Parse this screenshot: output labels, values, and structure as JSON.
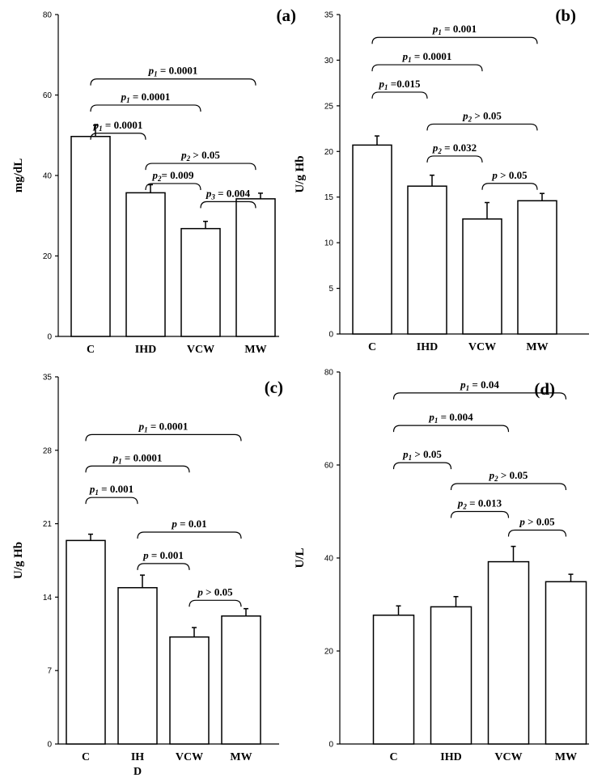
{
  "chart_data": [
    {
      "type": "bar",
      "panel_label": "(a)",
      "ylabel": "mg/dL",
      "ylim": [
        0,
        80
      ],
      "yticks": [
        "0",
        "20",
        "40",
        "60",
        "80"
      ],
      "categories": [
        "C",
        "IHD",
        "VCW",
        "MW"
      ],
      "values": [
        49.7,
        35.7,
        26.8,
        34.2
      ],
      "errors": [
        2.8,
        2.0,
        1.8,
        1.4
      ],
      "comparisons": [
        {
          "from": 0,
          "to": 3,
          "sym": "p",
          "sub": "1",
          "rest": " = 0.0001",
          "level": 64
        },
        {
          "from": 0,
          "to": 2,
          "sym": "p",
          "sub": "1",
          "rest": " = 0.0001",
          "level": 57.5
        },
        {
          "from": 0,
          "to": 1,
          "sym": "p",
          "sub": "1",
          "rest": " = 0.0001",
          "level": 50.5
        },
        {
          "from": 1,
          "to": 3,
          "sym": "p",
          "sub": "2",
          "rest": " > 0.05",
          "level": 43
        },
        {
          "from": 1,
          "to": 2,
          "sym": "p",
          "sub": "2",
          "rest": "= 0.009",
          "level": 38
        },
        {
          "from": 2,
          "to": 3,
          "sym": "p",
          "sub": "3",
          "rest": " = 0.004",
          "level": 33.5
        }
      ]
    },
    {
      "type": "bar",
      "panel_label": "(b)",
      "ylabel": "U/g Hb",
      "ylim": [
        0,
        35
      ],
      "yticks": [
        "0",
        "5",
        "10",
        "15",
        "20",
        "25",
        "30",
        "35"
      ],
      "categories": [
        "C",
        "IHD",
        "VCW",
        "MW"
      ],
      "values": [
        20.7,
        16.2,
        12.6,
        14.6
      ],
      "errors": [
        1.0,
        1.2,
        1.8,
        0.8
      ],
      "comparisons": [
        {
          "from": 0,
          "to": 3,
          "sym": "p",
          "sub": "1",
          "rest": " = 0.001",
          "level": 32.5
        },
        {
          "from": 0,
          "to": 2,
          "sym": "p",
          "sub": "1",
          "rest": " = 0.0001",
          "level": 29.5
        },
        {
          "from": 0,
          "to": 1,
          "sym": "p",
          "sub": "1",
          "rest": " =0.015",
          "level": 26.5
        },
        {
          "from": 1,
          "to": 3,
          "sym": "p",
          "sub": "2",
          "rest": " > 0.05",
          "level": 23
        },
        {
          "from": 1,
          "to": 2,
          "sym": "p",
          "sub": "2",
          "rest": " = 0.032",
          "level": 19.5
        },
        {
          "from": 2,
          "to": 3,
          "sym": "p",
          "sub": "",
          "rest": " > 0.05",
          "level": 16.5
        }
      ]
    },
    {
      "type": "bar",
      "panel_label": "(c)",
      "ylabel": "U/g Hb",
      "ylim": [
        0,
        35
      ],
      "yticks": [
        "0",
        "7",
        "14",
        "21",
        "28",
        "35"
      ],
      "categories": [
        "C",
        "IH\nD",
        "VCW",
        "MW"
      ],
      "values": [
        19.4,
        14.9,
        10.2,
        12.2
      ],
      "errors": [
        0.6,
        1.2,
        0.9,
        0.7
      ],
      "comparisons": [
        {
          "from": 0,
          "to": 3,
          "sym": "p",
          "sub": "1",
          "rest": " = 0.0001",
          "level": 29.5
        },
        {
          "from": 0,
          "to": 2,
          "sym": "p",
          "sub": "1",
          "rest": " = 0.0001",
          "level": 26.5
        },
        {
          "from": 0,
          "to": 1,
          "sym": "p",
          "sub": "1",
          "rest": " = 0.001",
          "level": 23.5
        },
        {
          "from": 1,
          "to": 3,
          "sym": "p",
          "sub": "",
          "rest": " = 0.01",
          "level": 20.2
        },
        {
          "from": 1,
          "to": 2,
          "sym": "p",
          "sub": "",
          "rest": " = 0.001",
          "level": 17.2
        },
        {
          "from": 2,
          "to": 3,
          "sym": "p",
          "sub": "",
          "rest": " > 0.05",
          "level": 13.7
        }
      ]
    },
    {
      "type": "bar",
      "panel_label": "(d)",
      "ylabel": "U/L",
      "ylim": [
        0,
        80
      ],
      "yticks": [
        "0",
        "20",
        "40",
        "60",
        "80"
      ],
      "categories": [
        "C",
        "IHD",
        "VCW",
        "MW"
      ],
      "values": [
        27.7,
        29.5,
        39.2,
        34.9
      ],
      "errors": [
        2.0,
        2.2,
        3.3,
        1.6
      ],
      "comparisons": [
        {
          "from": 0,
          "to": 3,
          "sym": "p",
          "sub": "1",
          "rest": " = 0.04",
          "level": 75.5
        },
        {
          "from": 0,
          "to": 2,
          "sym": "p",
          "sub": "1",
          "rest": " = 0.004",
          "level": 68.5
        },
        {
          "from": 0,
          "to": 1,
          "sym": "p",
          "sub": "1",
          "rest": " > 0.05",
          "level": 60.5
        },
        {
          "from": 1,
          "to": 3,
          "sym": "p",
          "sub": "2",
          "rest": " > 0.05",
          "level": 56
        },
        {
          "from": 1,
          "to": 2,
          "sym": "p",
          "sub": "2",
          "rest": " = 0.013",
          "level": 50
        },
        {
          "from": 2,
          "to": 3,
          "sym": "p",
          "sub": "",
          "rest": " > 0.05",
          "level": 46
        }
      ]
    }
  ]
}
